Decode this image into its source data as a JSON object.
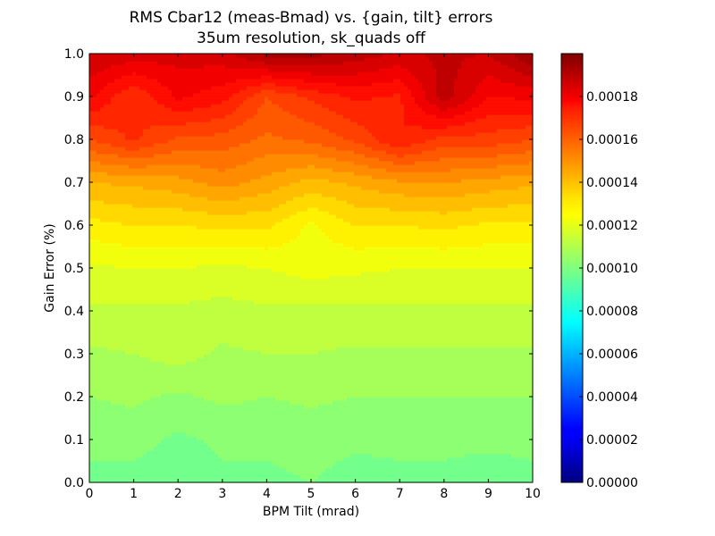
{
  "chart_data": {
    "type": "heatmap",
    "title": "RMS Cbar12 (meas-Bmad) vs. {gain, tilt} errors",
    "subtitle": "35um resolution, sk_quads off",
    "xlabel": "BPM Tilt (mrad)",
    "ylabel": "Gain Error (%)",
    "xlim": [
      0,
      10
    ],
    "ylim": [
      0.0,
      1.0
    ],
    "x_ticks": [
      "0",
      "1",
      "2",
      "3",
      "4",
      "5",
      "6",
      "7",
      "8",
      "9",
      "10"
    ],
    "y_ticks": [
      "0.0",
      "0.1",
      "0.2",
      "0.3",
      "0.4",
      "0.5",
      "0.6",
      "0.7",
      "0.8",
      "0.9",
      "1.0"
    ],
    "x": [
      0,
      1,
      2,
      3,
      4,
      5,
      6,
      7,
      8,
      9,
      10
    ],
    "y": [
      0.0,
      0.1,
      0.2,
      0.3,
      0.4,
      0.5,
      0.6,
      0.7,
      0.8,
      0.9,
      1.0
    ],
    "z": [
      [
        9.9e-05,
        9.8e-05,
        9.6e-05,
        9.9e-05,
        9.9e-05,
        0.0001,
        9.8e-05,
        9.9e-05,
        9.9e-05,
        9.6e-05,
        9.9e-05
      ],
      [
        0.000101,
        0.000102,
        9.9e-05,
        0.000101,
        0.000101,
        0.000102,
        0.000101,
        0.000101,
        0.000101,
        0.000102,
        0.000101
      ],
      [
        0.000105,
        0.000106,
        0.000104,
        0.000106,
        0.000105,
        0.000106,
        0.000105,
        0.000105,
        0.000105,
        0.000105,
        0.000105
      ],
      [
        0.000109,
        0.00011,
        0.000112,
        0.000109,
        0.00011,
        0.00011,
        0.000109,
        0.000109,
        0.000109,
        0.000109,
        0.000109
      ],
      [
        0.000114,
        0.000114,
        0.000114,
        0.000113,
        0.000114,
        0.000114,
        0.000114,
        0.000114,
        0.000114,
        0.000114,
        0.000114
      ],
      [
        0.000119,
        0.00012,
        0.00012,
        0.000119,
        0.00012,
        0.000122,
        0.000121,
        0.00012,
        0.00012,
        0.00012,
        0.00012
      ],
      [
        0.000128,
        0.00013,
        0.00013,
        0.000131,
        0.000131,
        0.000124,
        0.00013,
        0.00013,
        0.000131,
        0.000129,
        0.000129
      ],
      [
        0.00014,
        0.000141,
        0.000143,
        0.000147,
        0.000143,
        0.000138,
        0.000141,
        0.000144,
        0.000145,
        0.000143,
        0.000141
      ],
      [
        0.00016,
        0.000166,
        0.000159,
        0.000158,
        0.000154,
        0.000156,
        0.000161,
        0.00017,
        0.000163,
        0.000163,
        0.00016
      ],
      [
        0.000176,
        0.000165,
        0.000176,
        0.000172,
        0.00016,
        0.000166,
        0.000171,
        0.000169,
        0.000188,
        0.000175,
        0.000176
      ],
      [
        0.000185,
        0.000183,
        0.000182,
        0.000183,
        0.000192,
        0.000192,
        0.000188,
        0.000184,
        0.000186,
        0.000185,
        0.000195
      ]
    ],
    "colorbar": {
      "range": [
        0.0,
        0.0002
      ],
      "ticks": [
        "0.00000",
        "0.00002",
        "0.00004",
        "0.00006",
        "0.00008",
        "0.00010",
        "0.00012",
        "0.00014",
        "0.00016",
        "0.00018"
      ],
      "tick_values": [
        0.0,
        2e-05,
        4e-05,
        6e-05,
        8e-05,
        0.0001,
        0.00012,
        0.00014,
        0.00016,
        0.00018
      ],
      "colormap": "jet"
    },
    "grid": false,
    "legend": "colorbar-right"
  }
}
